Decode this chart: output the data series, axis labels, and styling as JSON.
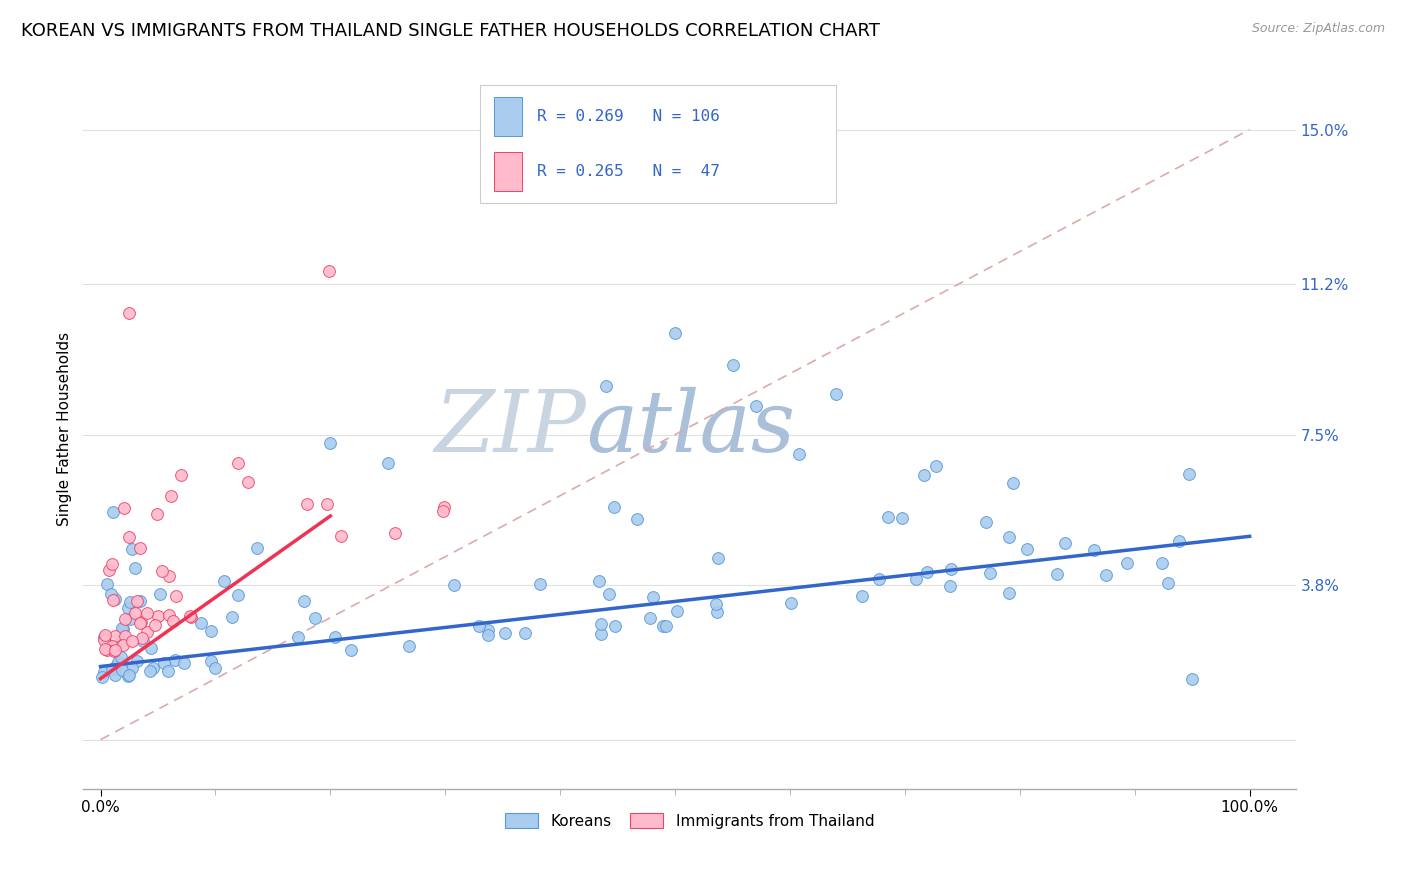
{
  "title": "KOREAN VS IMMIGRANTS FROM THAILAND SINGLE FATHER HOUSEHOLDS CORRELATION CHART",
  "source": "Source: ZipAtlas.com",
  "ylabel": "Single Father Households",
  "legend_label_1": "Koreans",
  "legend_label_2": "Immigrants from Thailand",
  "r1": 0.269,
  "n1": 106,
  "r2": 0.265,
  "n2": 47,
  "color_blue": "#AACCEE",
  "color_pink": "#FFBBCC",
  "edge_blue": "#5599DD",
  "edge_pink": "#EE4466",
  "trendline_blue": "#3366CC",
  "trendline_pink": "#EE3355",
  "diag_color": "#DDAAAA",
  "watermark_color": "#C8D8EA",
  "ytick_vals": [
    0.0,
    3.8,
    7.5,
    11.2,
    15.0
  ],
  "ytick_labels": [
    "",
    "3.8%",
    "7.5%",
    "11.2%",
    "15.0%"
  ],
  "xlim": [
    -1.5,
    104
  ],
  "ylim": [
    -1.2,
    16.5
  ],
  "title_fontsize": 13,
  "tick_fontsize": 11,
  "blue_trend_x0": 0,
  "blue_trend_x1": 100,
  "blue_trend_y0": 1.8,
  "blue_trend_y1": 5.0,
  "pink_trend_x0": 0,
  "pink_trend_x1": 20,
  "pink_trend_y0": 1.5,
  "pink_trend_y1": 5.5
}
